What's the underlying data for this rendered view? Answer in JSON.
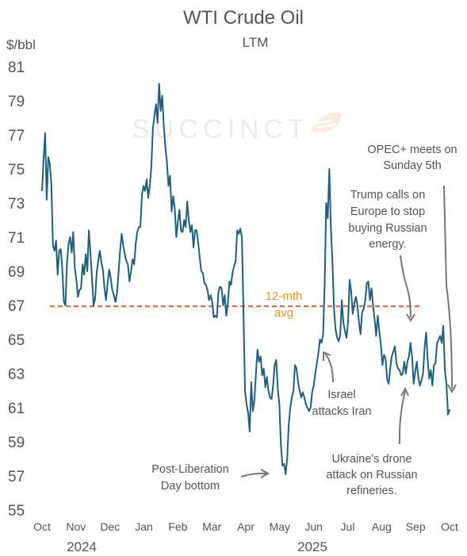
{
  "chart_data": {
    "type": "line",
    "title": "WTI Crude Oil",
    "subtitle": "LTM",
    "ylabel": "$/bbl",
    "ylim": [
      55,
      81
    ],
    "yticks": [
      "81",
      "79",
      "77",
      "75",
      "73",
      "71",
      "69",
      "67",
      "65",
      "63",
      "61",
      "59",
      "57",
      "55"
    ],
    "xticks": [
      "Oct",
      "Nov",
      "Dec",
      "Jan",
      "Feb",
      "Mar",
      "Apr",
      "May",
      "Jun",
      "Jul",
      "Aug",
      "Sep",
      "Oct"
    ],
    "years": [
      "2024",
      "2025"
    ],
    "watermark": "SUCCINCT",
    "avg_line": {
      "label": [
        "12-mth",
        "avg"
      ],
      "value": 66.95,
      "color": "#e8602c",
      "label_color": "#e8961e"
    },
    "series_color": "#1f5f7f",
    "series": [
      {
        "values": [
          73.7,
          75.6,
          77.1,
          73.2,
          75.7,
          75.3,
          74.0,
          70.5,
          70.2,
          70.8,
          68.8,
          70.2,
          70.3,
          69.1,
          67.2,
          67.0,
          69.5,
          70.6,
          71.0,
          70.1,
          71.3,
          69.2,
          68.5,
          67.5,
          67.9,
          68.0,
          69.4,
          68.8,
          70.0,
          69.0,
          71.4,
          70.1,
          68.6,
          67.0,
          67.4,
          68.9,
          69.6,
          70.2,
          69.5,
          69.1,
          68.0,
          67.3,
          68.3,
          69.1,
          68.6,
          67.9,
          67.6,
          67.2,
          67.7,
          68.9,
          70.2,
          71.2,
          70.5,
          70.0,
          69.6,
          69.4,
          68.4,
          69.0,
          69.7,
          69.4,
          70.6,
          71.3,
          71.6,
          71.6,
          73.5,
          74.0,
          73.7,
          74.4,
          73.3,
          74.0,
          75.1,
          77.4,
          78.1,
          78.8,
          77.7,
          80.0,
          78.4,
          79.3,
          77.5,
          76.3,
          75.4,
          74.0,
          74.6,
          72.5,
          73.4,
          72.7,
          71.0,
          71.9,
          72.6,
          71.4,
          71.3,
          72.0,
          71.6,
          73.1,
          72.0,
          71.3,
          71.7,
          70.4,
          71.4,
          71.4,
          70.7,
          69.8,
          69.0,
          68.9,
          68.3,
          68.2,
          67.9,
          67.3,
          67.6,
          67.2,
          66.3,
          66.4,
          66.3,
          67.8,
          68.1,
          68.0,
          67.0,
          67.6,
          66.4,
          67.1,
          68.4,
          68.2,
          68.9,
          69.3,
          69.6,
          71.4,
          71.2,
          71.5,
          71.0,
          66.7,
          62.0,
          61.2,
          60.7,
          59.6,
          62.5,
          60.8,
          61.4,
          63.0,
          64.4,
          63.7,
          64.0,
          62.9,
          63.3,
          62.2,
          62.8,
          62.0,
          61.6,
          61.5,
          62.3,
          63.5,
          63.8,
          62.1,
          61.2,
          58.8,
          57.6,
          57.7,
          57.1,
          58.0,
          60.0,
          61.0,
          61.6,
          62.0,
          63.5,
          63.3,
          62.5,
          62.0,
          61.6,
          61.9,
          61.6,
          61.2,
          61.0,
          60.8,
          61.0,
          61.9,
          62.3,
          63.0,
          63.6,
          64.2,
          65.0,
          64.8,
          65.3,
          68.2,
          73.0,
          72.1,
          75.0,
          71.6,
          69.5,
          66.8,
          65.6,
          65.1,
          64.9,
          65.3,
          67.3,
          66.0,
          65.5,
          65.1,
          66.0,
          68.5,
          67.8,
          66.5,
          67.1,
          67.5,
          67.0,
          66.0,
          65.3,
          66.6,
          66.8,
          67.3,
          68.3,
          68.4,
          67.3,
          68.0,
          67.0,
          66.2,
          65.2,
          66.4,
          65.5,
          64.7,
          63.5,
          64.1,
          63.9,
          62.7,
          62.4,
          63.3,
          64.0,
          64.3,
          64.6,
          63.6,
          63.3,
          63.2,
          62.9,
          63.0,
          63.7,
          63.0,
          63.7,
          64.0,
          64.8,
          64.0,
          62.4,
          63.1,
          63.7,
          62.8,
          62.3,
          62.6,
          63.0,
          64.5,
          65.4,
          63.8,
          62.7,
          63.2,
          62.3,
          63.5,
          63.6,
          64.8,
          65.0,
          65.2,
          64.8,
          65.8,
          63.2,
          62.4,
          60.6,
          60.9
        ]
      }
    ],
    "annotations": [
      {
        "lines": [
          "OPEC+ meets on",
          "Sunday 5th"
        ]
      },
      {
        "lines": [
          "Trump calls on",
          "Europe to stop",
          "buying Russian",
          "energy."
        ]
      },
      {
        "lines": [
          "Israel",
          "attacks Iran"
        ]
      },
      {
        "lines": [
          "Ukraine's drone",
          "attack on Russian",
          "refineries."
        ]
      },
      {
        "lines": [
          "Post-Liberation",
          "Day bottom"
        ]
      }
    ]
  }
}
